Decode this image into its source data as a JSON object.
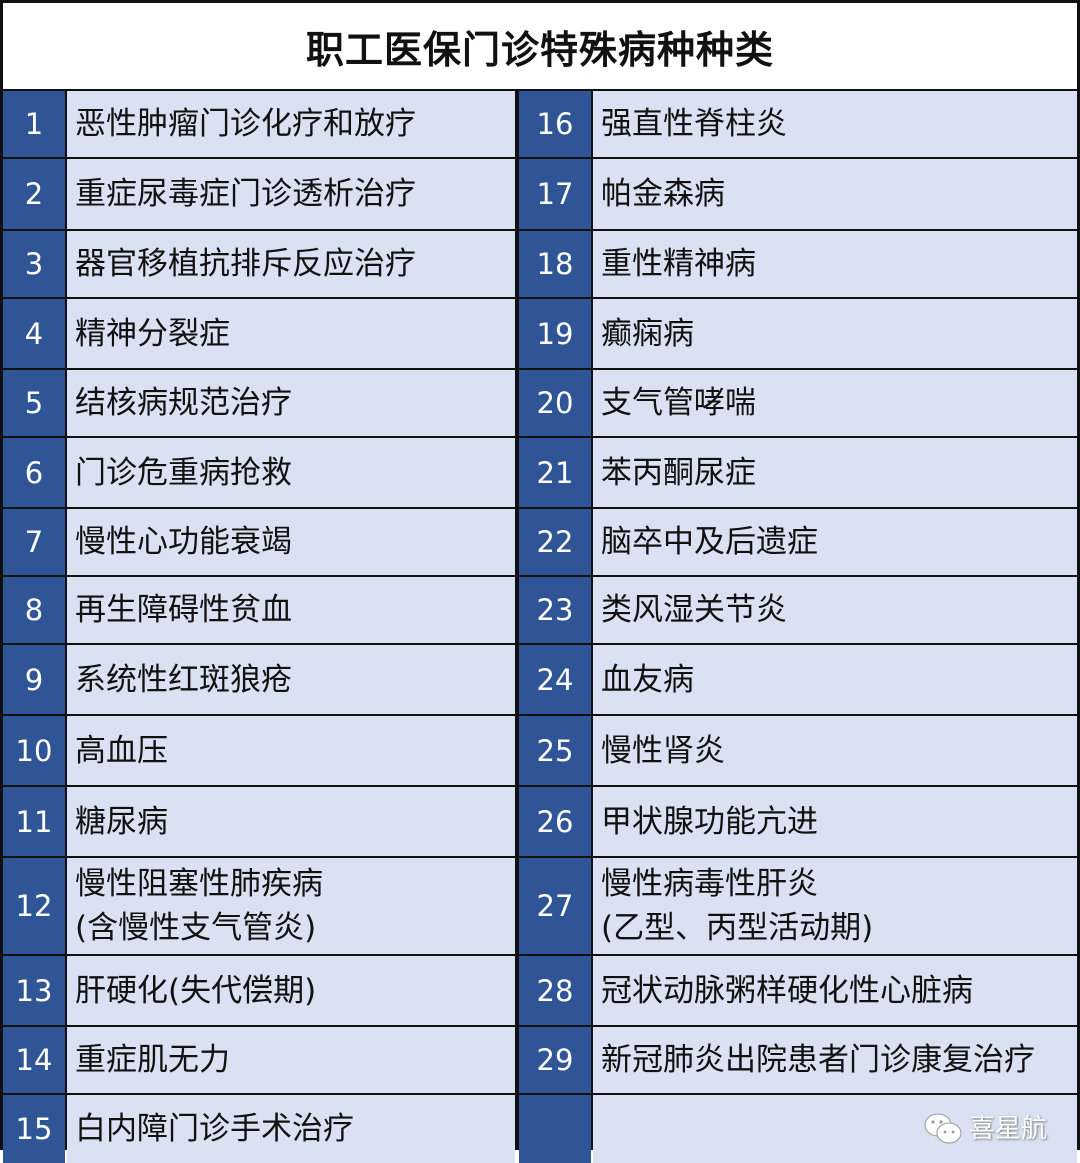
{
  "title": "职工医保门诊特殊病种种类",
  "colors": {
    "number_cell": "#2F5597",
    "text_cell": "#D9E1F2",
    "border": "#111111"
  },
  "rows": [
    {
      "left": {
        "no": "1",
        "name": [
          "恶性肿瘤门诊化疗和放疗"
        ]
      },
      "right": {
        "no": "16",
        "name": [
          "强直性脊柱炎"
        ]
      }
    },
    {
      "left": {
        "no": "2",
        "name": [
          "重症尿毒症门诊透析治疗"
        ]
      },
      "right": {
        "no": "17",
        "name": [
          "帕金森病"
        ]
      }
    },
    {
      "left": {
        "no": "3",
        "name": [
          "器官移植抗排斥反应治疗"
        ]
      },
      "right": {
        "no": "18",
        "name": [
          "重性精神病"
        ]
      }
    },
    {
      "left": {
        "no": "4",
        "name": [
          "精神分裂症"
        ]
      },
      "right": {
        "no": "19",
        "name": [
          "癫痫病"
        ]
      }
    },
    {
      "left": {
        "no": "5",
        "name": [
          "结核病规范治疗"
        ]
      },
      "right": {
        "no": "20",
        "name": [
          "支气管哮喘"
        ]
      }
    },
    {
      "left": {
        "no": "6",
        "name": [
          "门诊危重病抢救"
        ]
      },
      "right": {
        "no": "21",
        "name": [
          "苯丙酮尿症"
        ]
      }
    },
    {
      "left": {
        "no": "7",
        "name": [
          "慢性心功能衰竭"
        ]
      },
      "right": {
        "no": "22",
        "name": [
          "脑卒中及后遗症"
        ]
      }
    },
    {
      "left": {
        "no": "8",
        "name": [
          "再生障碍性贫血"
        ]
      },
      "right": {
        "no": "23",
        "name": [
          "类风湿关节炎"
        ]
      }
    },
    {
      "left": {
        "no": "9",
        "name": [
          "系统性红斑狼疮"
        ]
      },
      "right": {
        "no": "24",
        "name": [
          "血友病"
        ]
      }
    },
    {
      "left": {
        "no": "10",
        "name": [
          "高血压"
        ]
      },
      "right": {
        "no": "25",
        "name": [
          "慢性肾炎"
        ]
      }
    },
    {
      "left": {
        "no": "11",
        "name": [
          "糖尿病"
        ]
      },
      "right": {
        "no": "26",
        "name": [
          "甲状腺功能亢进"
        ]
      }
    },
    {
      "left": {
        "no": "12",
        "name": [
          "慢性阻塞性肺疾病",
          "(含慢性支气管炎)"
        ]
      },
      "right": {
        "no": "27",
        "name": [
          "慢性病毒性肝炎",
          "(乙型、丙型活动期)"
        ]
      }
    },
    {
      "left": {
        "no": "13",
        "name": [
          "肝硬化(失代偿期)"
        ]
      },
      "right": {
        "no": "28",
        "name": [
          "冠状动脉粥样硬化性心脏病"
        ]
      }
    },
    {
      "left": {
        "no": "14",
        "name": [
          "重症肌无力"
        ]
      },
      "right": {
        "no": "29",
        "name": [
          "新冠肺炎出院患者门诊康复治疗"
        ]
      }
    },
    {
      "left": {
        "no": "15",
        "name": [
          "白内障门诊手术治疗"
        ]
      },
      "right": {
        "no": "",
        "name": []
      }
    }
  ],
  "watermark": {
    "icon": "wechat-icon",
    "text": "喜星航"
  }
}
